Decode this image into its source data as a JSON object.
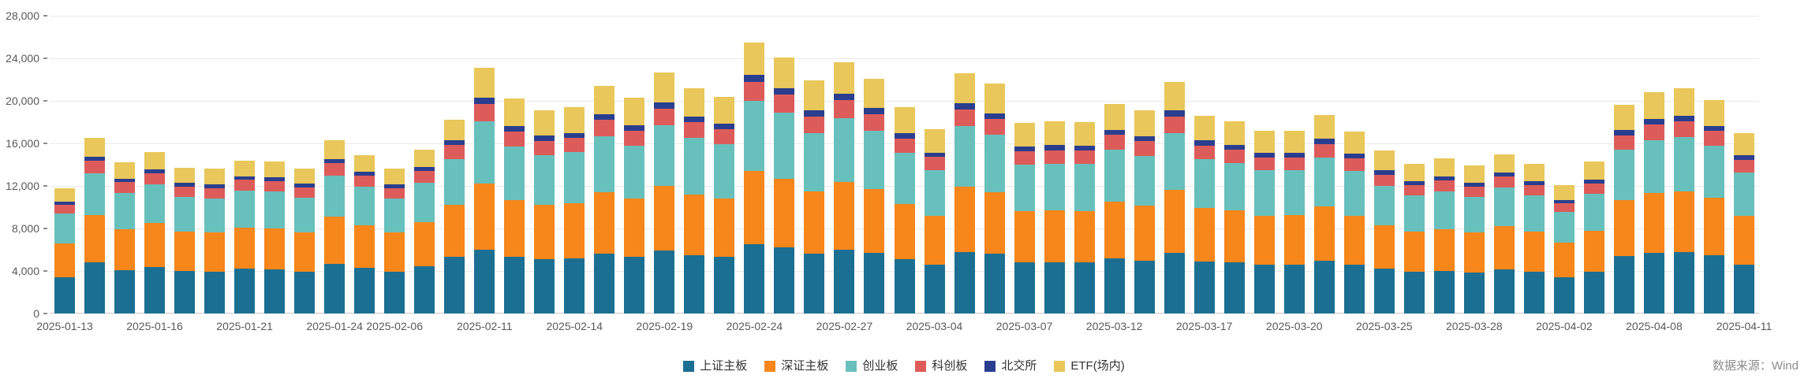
{
  "chart_data": {
    "type": "bar",
    "stacked": true,
    "title": "",
    "xlabel": "",
    "ylabel": "",
    "ylim": [
      0,
      28000
    ],
    "grid": true,
    "legend_position": "bottom",
    "y_ticks": [
      0,
      4000,
      8000,
      12000,
      16000,
      20000,
      24000,
      28000
    ],
    "y_tick_labels": [
      "0",
      "4,000",
      "8,000",
      "12,000",
      "16,000",
      "20,000",
      "24,000",
      "28,000"
    ],
    "x": [
      "2025-01-13",
      "2025-01-14",
      "2025-01-15",
      "2025-01-16",
      "2025-01-17",
      "2025-01-20",
      "2025-01-21",
      "2025-01-22",
      "2025-01-23",
      "2025-01-24",
      "2025-02-05",
      "2025-02-06",
      "2025-02-07",
      "2025-02-10",
      "2025-02-11",
      "2025-02-12",
      "2025-02-13",
      "2025-02-14",
      "2025-02-17",
      "2025-02-18",
      "2025-02-19",
      "2025-02-20",
      "2025-02-21",
      "2025-02-24",
      "2025-02-25",
      "2025-02-26",
      "2025-02-27",
      "2025-02-28",
      "2025-03-03",
      "2025-03-04",
      "2025-03-05",
      "2025-03-06",
      "2025-03-07",
      "2025-03-10",
      "2025-03-11",
      "2025-03-12",
      "2025-03-13",
      "2025-03-14",
      "2025-03-17",
      "2025-03-18",
      "2025-03-19",
      "2025-03-20",
      "2025-03-21",
      "2025-03-24",
      "2025-03-25",
      "2025-03-26",
      "2025-03-27",
      "2025-03-28",
      "2025-03-31",
      "2025-04-01",
      "2025-04-02",
      "2025-04-03",
      "2025-04-07",
      "2025-04-08",
      "2025-04-09",
      "2025-04-10",
      "2025-04-11"
    ],
    "x_tick_indices": [
      0,
      3,
      6,
      9,
      11,
      14,
      17,
      20,
      23,
      26,
      29,
      32,
      35,
      38,
      41,
      44,
      47,
      50,
      53,
      56
    ],
    "series": [
      {
        "key": "sh-main",
        "name": "上证主板",
        "color": "#1B6F92",
        "values": [
          3400,
          4800,
          4100,
          4400,
          4000,
          3950,
          4200,
          4150,
          3950,
          4700,
          4300,
          3950,
          4450,
          5300,
          6000,
          5300,
          5100,
          5200,
          5600,
          5300,
          5900,
          5500,
          5300,
          6500,
          6200,
          5600,
          6000,
          5700,
          5100,
          4600,
          5800,
          5600,
          4800,
          4800,
          4800,
          5200,
          5000,
          5700,
          4900,
          4800,
          4600,
          4600,
          5000,
          4600,
          4200,
          3900,
          4000,
          3850,
          4150,
          3900,
          3400,
          3950,
          5400,
          5700,
          5800,
          5500,
          4600
        ]
      },
      {
        "key": "sz-main",
        "name": "深证主板",
        "color": "#F7861B",
        "values": [
          3200,
          4450,
          3850,
          4100,
          3700,
          3650,
          3900,
          3850,
          3700,
          4400,
          4000,
          3650,
          4150,
          4900,
          6200,
          5400,
          5100,
          5200,
          5800,
          5500,
          6100,
          5700,
          5500,
          6900,
          6500,
          5900,
          6400,
          6000,
          5200,
          4600,
          6100,
          5800,
          4800,
          4900,
          4850,
          5300,
          5150,
          5900,
          5000,
          4900,
          4600,
          4650,
          5050,
          4600,
          4100,
          3800,
          3950,
          3750,
          4050,
          3800,
          3250,
          3850,
          5300,
          5600,
          5700,
          5400,
          4550
        ]
      },
      {
        "key": "chinext",
        "name": "创业板",
        "color": "#68C0BC",
        "values": [
          2800,
          3950,
          3400,
          3650,
          3300,
          3250,
          3450,
          3450,
          3250,
          3900,
          3600,
          3250,
          3700,
          4350,
          5900,
          5000,
          4700,
          4750,
          5300,
          5000,
          5700,
          5300,
          5100,
          6600,
          6200,
          5500,
          6000,
          5500,
          4800,
          4300,
          5700,
          5400,
          4400,
          4400,
          4400,
          4900,
          4700,
          5400,
          4600,
          4450,
          4250,
          4200,
          4600,
          4200,
          3700,
          3400,
          3550,
          3350,
          3650,
          3400,
          2900,
          3450,
          4700,
          5000,
          5100,
          4850,
          4100
        ]
      },
      {
        "key": "star",
        "name": "科创板",
        "color": "#DD5C5A",
        "values": [
          830,
          1150,
          1000,
          1060,
          960,
          950,
          1010,
          1000,
          950,
          1140,
          1040,
          950,
          1080,
          1270,
          1620,
          1410,
          1340,
          1360,
          1500,
          1420,
          1590,
          1480,
          1430,
          1790,
          1690,
          1530,
          1650,
          1550,
          1360,
          1210,
          1580,
          1510,
          1250,
          1270,
          1260,
          1380,
          1340,
          1530,
          1300,
          1270,
          1200,
          1200,
          1310,
          1200,
          1070,
          990,
          1020,
          970,
          1050,
          990,
          850,
          1000,
          1370,
          1460,
          1480,
          1410,
          1190
        ]
      },
      {
        "key": "bse",
        "name": "北交所",
        "color": "#2A3E8F",
        "values": [
          290,
          410,
          350,
          380,
          340,
          340,
          360,
          360,
          340,
          410,
          370,
          340,
          390,
          460,
          580,
          510,
          480,
          490,
          540,
          510,
          570,
          530,
          510,
          640,
          600,
          550,
          590,
          550,
          490,
          430,
          570,
          540,
          450,
          450,
          450,
          490,
          480,
          550,
          470,
          450,
          430,
          430,
          470,
          430,
          380,
          350,
          370,
          350,
          380,
          350,
          300,
          360,
          490,
          520,
          530,
          500,
          430
        ]
      },
      {
        "key": "etf",
        "name": "ETF(场内)",
        "color": "#E9C75A",
        "values": [
          1280,
          1740,
          1500,
          1610,
          1400,
          1460,
          1480,
          1490,
          1410,
          1750,
          1590,
          1460,
          1630,
          1920,
          2800,
          2580,
          2380,
          2400,
          2660,
          2570,
          2840,
          2690,
          2560,
          3070,
          2910,
          2820,
          2960,
          2800,
          2450,
          2160,
          2850,
          2750,
          2200,
          2280,
          2240,
          2430,
          2430,
          2720,
          2330,
          2230,
          2120,
          2120,
          2270,
          2070,
          1850,
          1660,
          1710,
          1630,
          1720,
          1660,
          1400,
          1690,
          2340,
          2520,
          2590,
          2440,
          2130
        ]
      }
    ]
  },
  "footer": {
    "source": "数据来源：Wind"
  }
}
